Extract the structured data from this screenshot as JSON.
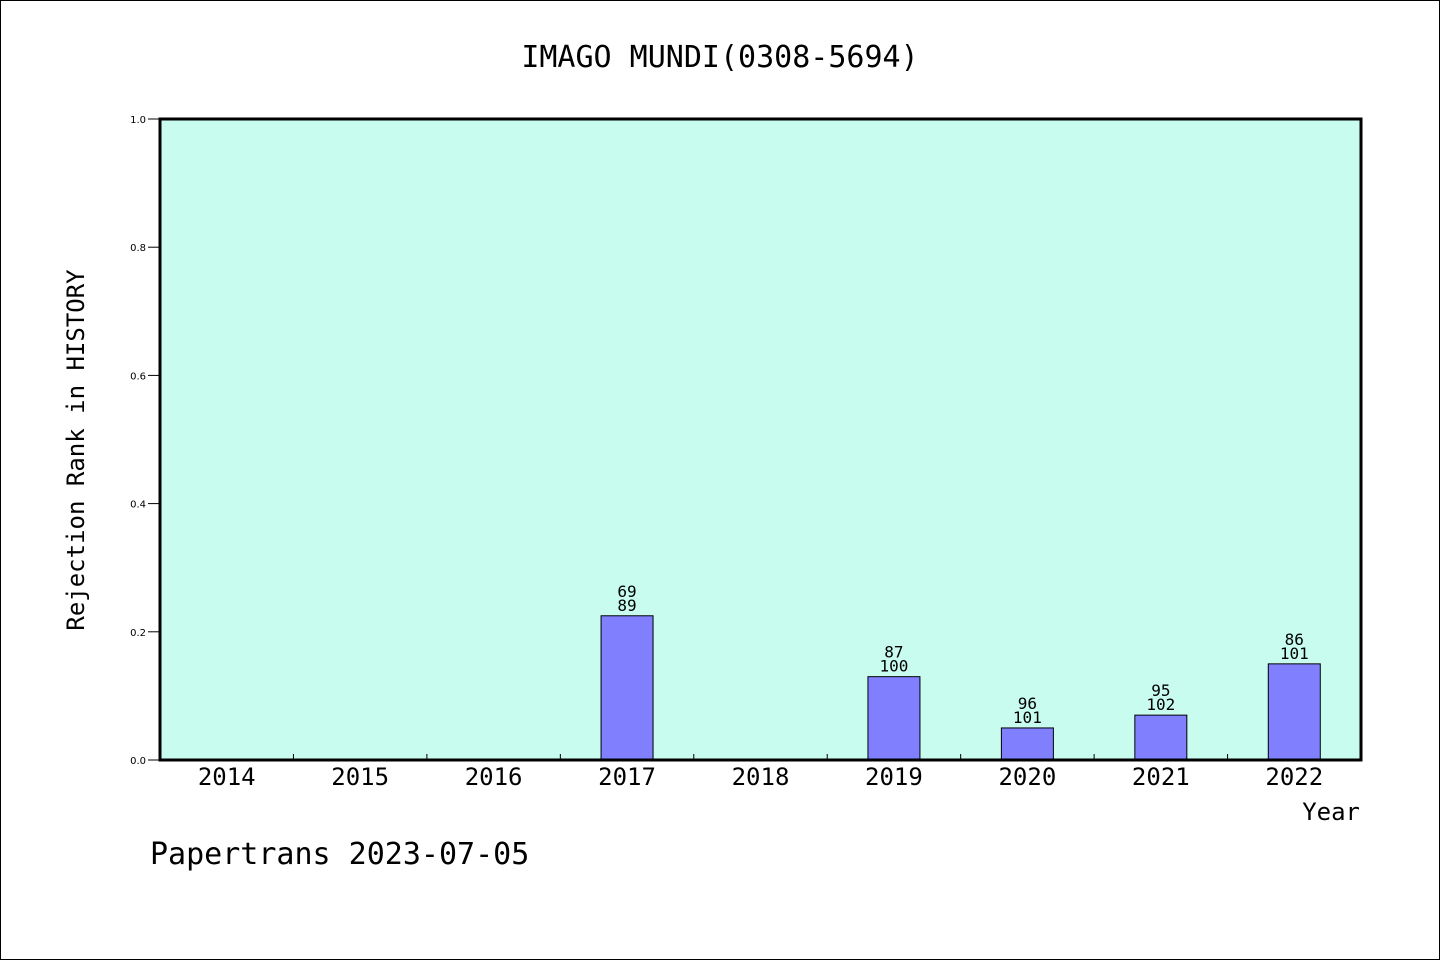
{
  "chart_data": {
    "type": "bar",
    "title": "IMAGO MUNDI(0308-5694)",
    "xlabel": "Year",
    "ylabel": "Rejection Rank in HISTORY",
    "categories": [
      "2014",
      "2015",
      "2016",
      "2017",
      "2018",
      "2019",
      "2020",
      "2021",
      "2022"
    ],
    "values": [
      null,
      null,
      null,
      0.225,
      null,
      0.13,
      0.05,
      0.07,
      0.15
    ],
    "bar_labels": [
      null,
      null,
      null,
      [
        "69",
        "89"
      ],
      null,
      [
        "87",
        "100"
      ],
      [
        "96",
        "101"
      ],
      [
        "95",
        "102"
      ],
      [
        "86",
        "101"
      ]
    ],
    "yticks": [
      "0.0",
      "0.2",
      "0.4",
      "0.6",
      "0.8",
      "1.0"
    ],
    "ylim": [
      0,
      1.0
    ],
    "grid": false,
    "colors": {
      "plot_background": "#c8fcee",
      "bar_fill": "#8080ff",
      "bar_stroke": "#000000",
      "axis": "#000000"
    }
  },
  "footer": "Papertrans 2023-07-05"
}
